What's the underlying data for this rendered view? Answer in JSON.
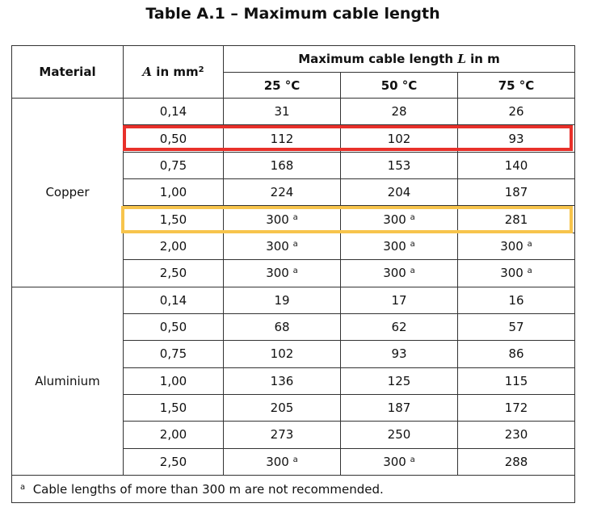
{
  "title": "Table A.1 – Maximum cable length",
  "header": {
    "material": "Material",
    "area": {
      "symbol": "A",
      "text": "in mm",
      "sup": "2"
    },
    "group": {
      "before": "Maximum cable length",
      "symbol": "L",
      "after": "in m"
    },
    "temps": [
      "25 °C",
      "50 °C",
      "75 °C"
    ]
  },
  "groups": [
    {
      "material": "Copper",
      "rows": [
        {
          "area": "0,14",
          "values": [
            {
              "value": 31
            },
            {
              "value": 28
            },
            {
              "value": 26
            }
          ]
        },
        {
          "area": "0,50",
          "values": [
            {
              "value": 112
            },
            {
              "value": 102
            },
            {
              "value": 93
            }
          ]
        },
        {
          "area": "0,75",
          "values": [
            {
              "value": 168
            },
            {
              "value": 153
            },
            {
              "value": 140
            }
          ]
        },
        {
          "area": "1,00",
          "values": [
            {
              "value": 224
            },
            {
              "value": 204
            },
            {
              "value": 187
            }
          ]
        },
        {
          "area": "1,50",
          "values": [
            {
              "value": 300,
              "note": "a"
            },
            {
              "value": 300,
              "note": "a"
            },
            {
              "value": 281
            }
          ]
        },
        {
          "area": "2,00",
          "values": [
            {
              "value": 300,
              "note": "a"
            },
            {
              "value": 300,
              "note": "a"
            },
            {
              "value": 300,
              "note": "a"
            }
          ]
        },
        {
          "area": "2,50",
          "values": [
            {
              "value": 300,
              "note": "a"
            },
            {
              "value": 300,
              "note": "a"
            },
            {
              "value": 300,
              "note": "a"
            }
          ]
        }
      ]
    },
    {
      "material": "Aluminium",
      "rows": [
        {
          "area": "0,14",
          "values": [
            {
              "value": 19
            },
            {
              "value": 17
            },
            {
              "value": 16
            }
          ]
        },
        {
          "area": "0,50",
          "values": [
            {
              "value": 68
            },
            {
              "value": 62
            },
            {
              "value": 57
            }
          ]
        },
        {
          "area": "0,75",
          "values": [
            {
              "value": 102
            },
            {
              "value": 93
            },
            {
              "value": 86
            }
          ]
        },
        {
          "area": "1,00",
          "values": [
            {
              "value": 136
            },
            {
              "value": 125
            },
            {
              "value": 115
            }
          ]
        },
        {
          "area": "1,50",
          "values": [
            {
              "value": 205
            },
            {
              "value": 187
            },
            {
              "value": 172
            }
          ]
        },
        {
          "area": "2,00",
          "values": [
            {
              "value": 273
            },
            {
              "value": 250
            },
            {
              "value": 230
            }
          ]
        },
        {
          "area": "2,50",
          "values": [
            {
              "value": 300,
              "note": "a"
            },
            {
              "value": 300,
              "note": "a"
            },
            {
              "value": 288
            }
          ]
        }
      ]
    }
  ],
  "footnote": {
    "mark": "a",
    "text": "Cable lengths of more than 300 m are not recommended."
  }
}
